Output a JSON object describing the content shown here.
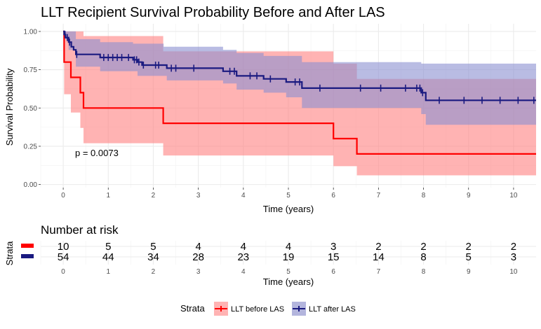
{
  "chart_data": {
    "type": "line",
    "title": "LLT Recipient Survival Probability Before and After LAS",
    "xlabel": "Time (years)",
    "ylabel": "Survival Probability",
    "xlim": [
      -0.5,
      10.5
    ],
    "ylim": [
      -0.02,
      1.05
    ],
    "x_ticks": [
      0,
      1,
      2,
      3,
      4,
      5,
      6,
      7,
      8,
      9,
      10
    ],
    "x_tick_labels": [
      "0",
      "1",
      "2",
      "3",
      "4",
      "5",
      "6",
      "7",
      "8",
      "9",
      "10"
    ],
    "y_ticks": [
      0,
      0.25,
      0.5,
      0.75,
      1
    ],
    "y_tick_labels": [
      "0.00",
      "0.25",
      "0.50",
      "0.75",
      "1.00"
    ],
    "pvalue_text": "p = 0.0073",
    "grid": true,
    "legend_position": "bottom",
    "series": [
      {
        "name": "LLT before LAS",
        "color": "#ff0000",
        "ci_color": "#ff8080",
        "steps": [
          [
            0,
            1.0
          ],
          [
            0.02,
            0.8
          ],
          [
            0.17,
            0.7
          ],
          [
            0.38,
            0.6
          ],
          [
            0.45,
            0.5
          ],
          [
            2.22,
            0.4
          ],
          [
            6.0,
            0.3
          ],
          [
            6.52,
            0.2
          ],
          [
            10.5,
            0.2
          ]
        ],
        "ci_lower": [
          [
            0,
            1.0
          ],
          [
            0.02,
            0.59
          ],
          [
            0.17,
            0.47
          ],
          [
            0.38,
            0.37
          ],
          [
            0.45,
            0.27
          ],
          [
            2.22,
            0.19
          ],
          [
            6.0,
            0.12
          ],
          [
            6.52,
            0.06
          ],
          [
            10.5,
            0.06
          ]
        ],
        "ci_upper": [
          [
            0,
            1.0
          ],
          [
            0.02,
            1.0
          ],
          [
            0.45,
            0.97
          ],
          [
            2.22,
            0.87
          ],
          [
            6.0,
            0.79
          ],
          [
            6.52,
            0.69
          ],
          [
            10.5,
            0.69
          ]
        ],
        "censor_x": []
      },
      {
        "name": "LLT after LAS",
        "color": "#1a1a80",
        "ci_color": "#8a8fd0",
        "steps": [
          [
            0,
            1.0
          ],
          [
            0.02,
            0.98
          ],
          [
            0.05,
            0.96
          ],
          [
            0.12,
            0.93
          ],
          [
            0.18,
            0.9
          ],
          [
            0.23,
            0.88
          ],
          [
            0.28,
            0.85
          ],
          [
            0.82,
            0.83
          ],
          [
            1.55,
            0.815
          ],
          [
            1.65,
            0.8
          ],
          [
            1.75,
            0.78
          ],
          [
            2.3,
            0.76
          ],
          [
            3.55,
            0.74
          ],
          [
            3.85,
            0.71
          ],
          [
            4.45,
            0.69
          ],
          [
            4.95,
            0.67
          ],
          [
            5.3,
            0.63
          ],
          [
            7.95,
            0.6
          ],
          [
            8.05,
            0.55
          ],
          [
            10.5,
            0.55
          ]
        ],
        "ci_lower": [
          [
            0,
            1.0
          ],
          [
            0.02,
            0.95
          ],
          [
            0.12,
            0.88
          ],
          [
            0.28,
            0.77
          ],
          [
            0.82,
            0.74
          ],
          [
            1.65,
            0.71
          ],
          [
            2.3,
            0.68
          ],
          [
            3.55,
            0.66
          ],
          [
            3.85,
            0.62
          ],
          [
            4.45,
            0.6
          ],
          [
            4.95,
            0.57
          ],
          [
            5.3,
            0.5
          ],
          [
            7.95,
            0.46
          ],
          [
            8.05,
            0.39
          ],
          [
            10.5,
            0.39
          ]
        ],
        "ci_upper": [
          [
            0,
            1.0
          ],
          [
            0.28,
            0.95
          ],
          [
            0.82,
            0.93
          ],
          [
            1.55,
            0.92
          ],
          [
            2.23,
            0.9
          ],
          [
            3.55,
            0.88
          ],
          [
            3.85,
            0.86
          ],
          [
            4.45,
            0.84
          ],
          [
            5.3,
            0.8
          ],
          [
            7.95,
            0.79
          ],
          [
            10.5,
            0.79
          ]
        ],
        "censor_x": [
          0.04,
          0.09,
          0.14,
          0.3,
          0.9,
          1.0,
          1.1,
          1.2,
          1.3,
          1.45,
          1.58,
          1.63,
          1.68,
          1.78,
          2.05,
          2.12,
          2.4,
          2.5,
          2.9,
          3.7,
          3.8,
          4.15,
          4.3,
          4.6,
          5.15,
          5.25,
          5.7,
          6.6,
          7.05,
          7.6,
          7.85,
          7.92,
          7.98,
          8.35,
          8.9,
          9.3,
          9.7,
          10.1,
          10.45
        ]
      }
    ]
  },
  "risk_table": {
    "title": "Number at risk",
    "ylabel": "Strata",
    "xlabel": "Time (years)",
    "times": [
      "0",
      "1",
      "2",
      "3",
      "4",
      "5",
      "6",
      "7",
      "8",
      "9",
      "10"
    ],
    "rows": [
      {
        "color": "#ff0000",
        "counts": [
          "10",
          "5",
          "5",
          "4",
          "4",
          "4",
          "3",
          "2",
          "2",
          "2",
          "2"
        ]
      },
      {
        "color": "#1a1a80",
        "counts": [
          "54",
          "44",
          "34",
          "28",
          "23",
          "19",
          "15",
          "14",
          "8",
          "5",
          "3"
        ]
      }
    ]
  },
  "legend": {
    "title": "Strata",
    "items": [
      "LLT before LAS",
      "LLT after LAS"
    ]
  }
}
